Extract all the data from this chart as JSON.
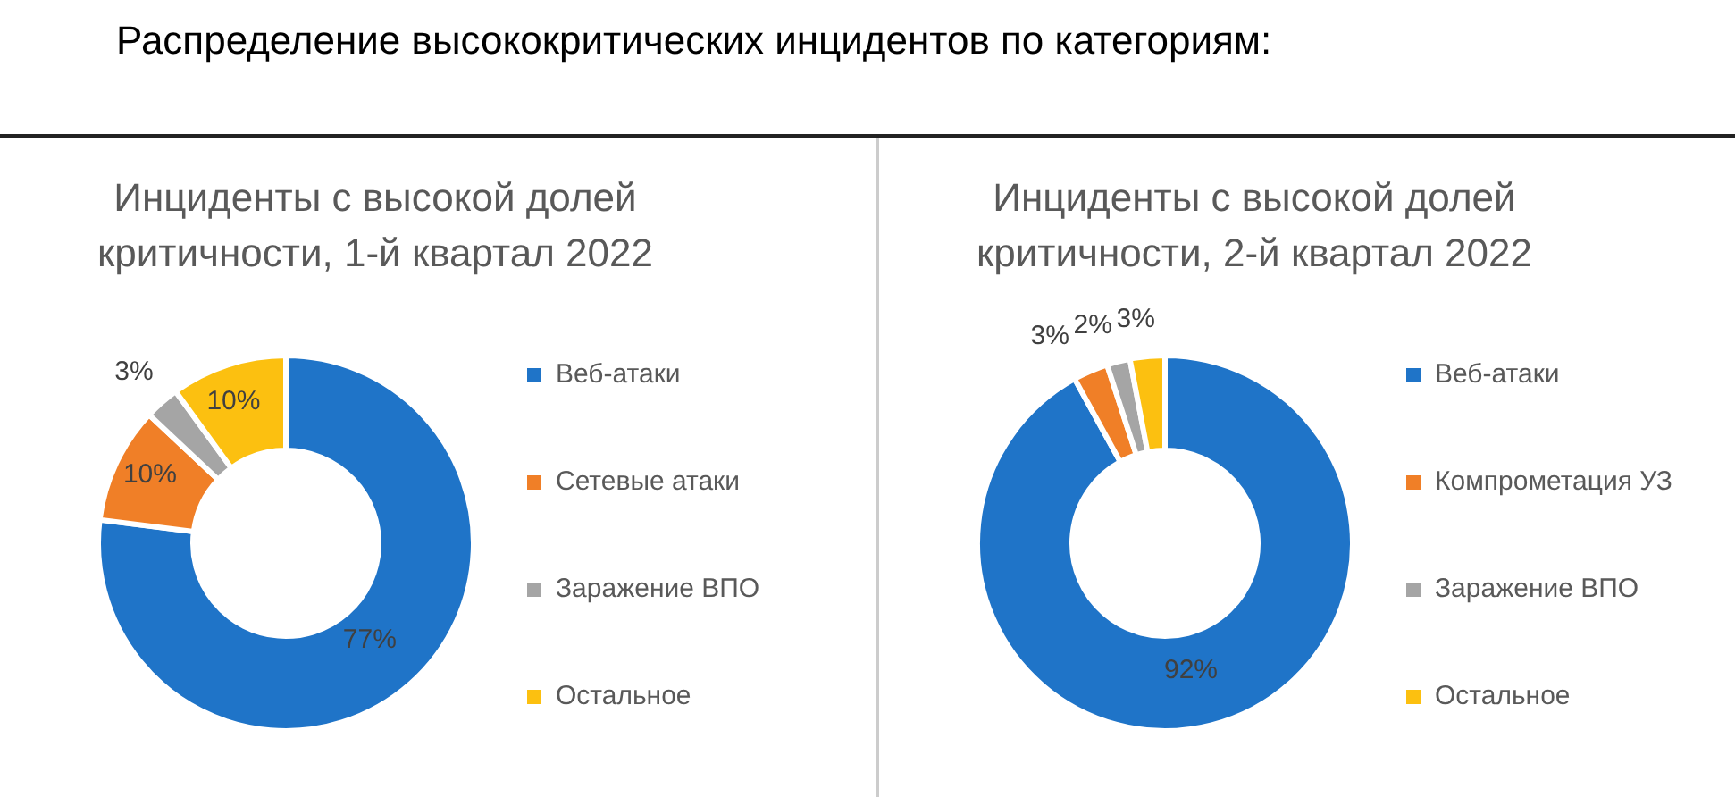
{
  "chart_data": [
    {
      "type": "donut",
      "title": "Инциденты с высокой долей критичности, 1-й квартал 2022",
      "annotations": [
        "Распределение высококритических инцидентов по категориям:"
      ],
      "categories": [
        "Веб-атаки",
        "Сетевые атаки",
        "Заражение ВПО",
        "Остальное"
      ],
      "values": [
        77,
        10,
        3,
        10
      ],
      "colors": [
        "#1f74c8",
        "#f07f27",
        "#a5a5a5",
        "#fcc010"
      ],
      "value_labels": [
        "77%",
        "10%",
        "3%",
        "10%"
      ],
      "legend": "right"
    },
    {
      "type": "donut",
      "title": "Инциденты с высокой долей критичности, 2-й квартал 2022",
      "categories": [
        "Веб-атаки",
        "Компрометация УЗ",
        "Заражение ВПО",
        "Остальное"
      ],
      "values": [
        92,
        3,
        2,
        3
      ],
      "colors": [
        "#1f74c8",
        "#f07f27",
        "#a5a5a5",
        "#fcc010"
      ],
      "value_labels": [
        "92%",
        "3%",
        "2%",
        "3%"
      ],
      "legend": "right"
    }
  ]
}
